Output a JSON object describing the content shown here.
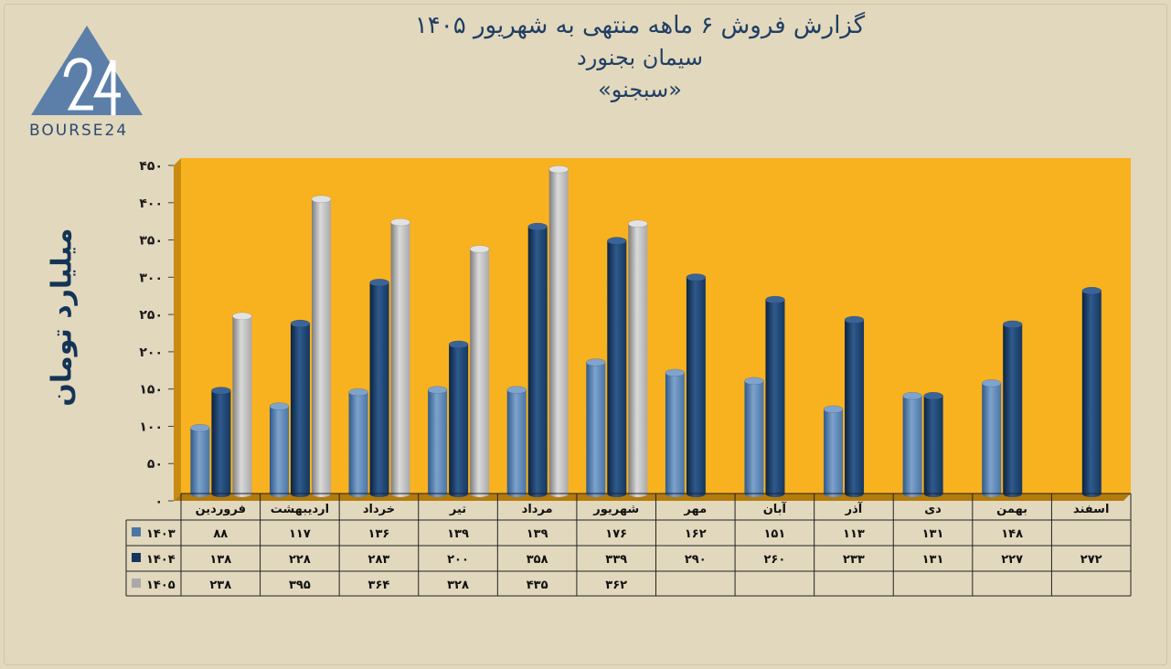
{
  "header": {
    "title": "گزارش  فروش ۶ ماهه منتهی به شهریور ۱۴۰۵",
    "subtitle": "سیمان بجنورد",
    "ticker": "«سبجنو»"
  },
  "logo": {
    "text": "BOURSE24",
    "mark": "24"
  },
  "colors": {
    "plot_bg": "#f9b21f",
    "page_bg": "#e2d8bd",
    "series_1403": "#4a75a6",
    "series_1404": "#15375f",
    "series_1405": "#a9a9a9"
  },
  "chart_data": {
    "type": "bar",
    "title": "گزارش  فروش ۶ ماهه منتهی به شهریور ۱۴۰۵",
    "ylabel": "میلیارد تومان",
    "ylim": [
      0,
      450
    ],
    "yticks": [
      0,
      50,
      100,
      150,
      200,
      250,
      300,
      350,
      400,
      450
    ],
    "ytick_labels": [
      "۰",
      "۵۰",
      "۱۰۰",
      "۱۵۰",
      "۲۰۰",
      "۲۵۰",
      "۳۰۰",
      "۳۵۰",
      "۴۰۰",
      "۴۵۰"
    ],
    "categories": [
      "فروردین",
      "اردیبهشت",
      "خرداد",
      "تیر",
      "مرداد",
      "شهریور",
      "مهر",
      "آبان",
      "آذر",
      "دی",
      "بهمن",
      "اسفند"
    ],
    "series": [
      {
        "name": "۱۴۰۳",
        "values": [
          88,
          117,
          136,
          139,
          139,
          176,
          162,
          151,
          113,
          131,
          148,
          null
        ],
        "labels": [
          "۸۸",
          "۱۱۷",
          "۱۳۶",
          "۱۳۹",
          "۱۳۹",
          "۱۷۶",
          "۱۶۲",
          "۱۵۱",
          "۱۱۳",
          "۱۳۱",
          "۱۴۸",
          ""
        ]
      },
      {
        "name": "۱۴۰۴",
        "values": [
          138,
          228,
          283,
          200,
          358,
          339,
          290,
          260,
          233,
          131,
          227,
          272
        ],
        "labels": [
          "۱۳۸",
          "۲۲۸",
          "۲۸۳",
          "۲۰۰",
          "۳۵۸",
          "۳۳۹",
          "۲۹۰",
          "۲۶۰",
          "۲۳۳",
          "۱۳۱",
          "۲۲۷",
          "۲۷۲"
        ]
      },
      {
        "name": "۱۴۰۵",
        "values": [
          238,
          395,
          364,
          328,
          435,
          362,
          null,
          null,
          null,
          null,
          null,
          null
        ],
        "labels": [
          "۲۳۸",
          "۳۹۵",
          "۳۶۴",
          "۳۲۸",
          "۴۳۵",
          "۳۶۲",
          "",
          "",
          "",
          "",
          "",
          ""
        ]
      }
    ],
    "grid": false,
    "legend": "data-table"
  }
}
